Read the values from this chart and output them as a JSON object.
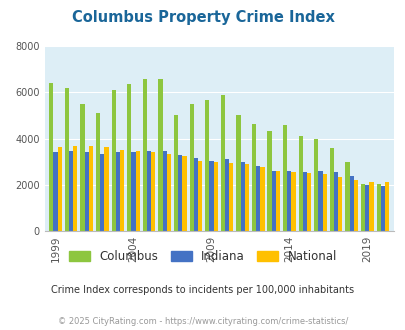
{
  "title": "Columbus Property Crime Index",
  "title_color": "#1a6699",
  "bg_color": "#ddeef6",
  "years": [
    1999,
    2000,
    2001,
    2002,
    2003,
    2004,
    2005,
    2006,
    2007,
    2008,
    2009,
    2010,
    2011,
    2012,
    2013,
    2014,
    2015,
    2016,
    2017,
    2018,
    2019,
    2020
  ],
  "columbus": [
    6400,
    6200,
    5500,
    5100,
    6100,
    6350,
    6600,
    6600,
    5000,
    5500,
    5650,
    5900,
    5000,
    4650,
    4350,
    4600,
    4100,
    4000,
    3600,
    3000,
    2050,
    2050
  ],
  "indiana": [
    3400,
    3450,
    3400,
    3350,
    3400,
    3400,
    3450,
    3450,
    3300,
    3150,
    3050,
    3100,
    3000,
    2800,
    2600,
    2600,
    2550,
    2600,
    2550,
    2400,
    2000,
    1950
  ],
  "national": [
    3650,
    3700,
    3700,
    3650,
    3500,
    3450,
    3400,
    3350,
    3250,
    3050,
    3000,
    2950,
    2900,
    2750,
    2600,
    2550,
    2500,
    2450,
    2350,
    2200,
    2100,
    2100
  ],
  "columbus_color": "#8dc63f",
  "indiana_color": "#4472c4",
  "national_color": "#ffc000",
  "ylim": [
    0,
    8000
  ],
  "yticks": [
    0,
    2000,
    4000,
    6000,
    8000
  ],
  "xtick_years": [
    1999,
    2004,
    2009,
    2014,
    2019
  ],
  "subtitle": "Crime Index corresponds to incidents per 100,000 inhabitants",
  "footer": "© 2025 CityRating.com - https://www.cityrating.com/crime-statistics/",
  "subtitle_color": "#333333",
  "footer_color": "#999999",
  "legend_labels": [
    "Columbus",
    "Indiana",
    "National"
  ],
  "bar_width": 0.27
}
